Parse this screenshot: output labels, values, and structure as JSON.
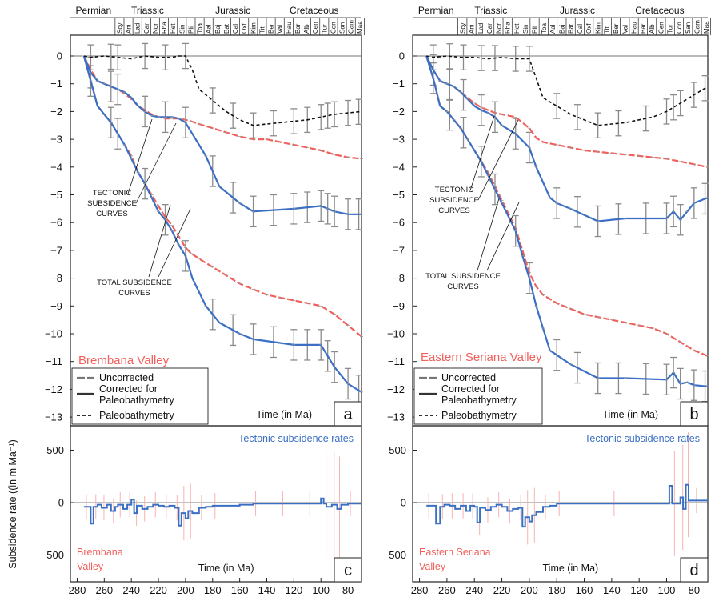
{
  "chart_data": [
    {
      "panel": "a",
      "type": "line",
      "site": "Brembana Valley",
      "xlabel": "Time (in Ma)",
      "xlim": [
        285,
        70
      ],
      "ylim": [
        -13.4,
        0.4
      ],
      "yticks": [
        0,
        -1,
        -2,
        -3,
        -4,
        -5,
        -6,
        -7,
        -8,
        -9,
        -10,
        -11,
        -12,
        -13
      ],
      "eras": [
        "Permian",
        "Triassic",
        "Jurassic",
        "Cretaceous"
      ],
      "stages": [
        "Scy",
        "Ani",
        "Lad",
        "Car",
        "Nor",
        "Rha",
        "Het",
        "Sin",
        "Pli",
        "Toa",
        "Aal",
        "Baj",
        "Bat",
        "Cal",
        "Oxf",
        "Kim",
        "Tit",
        "Ber",
        "Val",
        "Hau",
        "Bar",
        "Alb",
        "Cen",
        "Tur",
        "Con",
        "San",
        "Cam",
        "Maa"
      ],
      "annotations": [
        "TECTONIC SUBSIDENCE CURVES",
        "TOTAL SUBSIDENCE CURVES"
      ],
      "legend": [
        "Uncorrected",
        "Corrected for Paleobathymetry",
        "Paleobathymetry"
      ],
      "letter": "a",
      "series": [
        {
          "name": "Uncorrected",
          "color": "#f0605c",
          "dashed": true,
          "x": [
            275,
            270,
            265,
            260,
            255,
            250,
            245,
            240,
            235,
            230,
            225,
            220,
            215,
            210,
            205,
            200,
            196,
            190,
            180,
            170,
            160,
            150,
            140,
            130,
            120,
            110,
            100,
            90,
            80,
            70
          ],
          "y": [
            0,
            -0.5,
            -0.9,
            -1.0,
            -1.1,
            -1.2,
            -1.35,
            -1.55,
            -1.8,
            -1.95,
            -2.1,
            -2.2,
            -2.25,
            -2.25,
            -2.25,
            -2.3,
            -2.35,
            -2.45,
            -2.6,
            -2.75,
            -2.9,
            -3.0,
            -3.0,
            -3.1,
            -3.2,
            -3.3,
            -3.4,
            -3.55,
            -3.65,
            -3.7
          ]
        },
        {
          "name": "Uncorrected",
          "color": "#f0605c",
          "dashed": true,
          "x": [
            275,
            270,
            265,
            260,
            255,
            250,
            245,
            240,
            235,
            230,
            225,
            220,
            215,
            210,
            205,
            200,
            196,
            190,
            180,
            170,
            160,
            150,
            140,
            130,
            120,
            110,
            100,
            90,
            80,
            70
          ],
          "y": [
            0,
            -0.9,
            -1.8,
            -2.1,
            -2.4,
            -2.8,
            -3.2,
            -3.6,
            -4.2,
            -4.6,
            -5.0,
            -5.4,
            -5.8,
            -6.1,
            -6.5,
            -6.9,
            -7.1,
            -7.3,
            -7.6,
            -7.9,
            -8.2,
            -8.4,
            -8.6,
            -8.7,
            -8.8,
            -8.9,
            -9.0,
            -9.3,
            -9.7,
            -10.1
          ]
        },
        {
          "name": "Corrected for Paleobathymetry",
          "color": "#3a6fc4",
          "dashed": false,
          "x": [
            275,
            270,
            265,
            260,
            255,
            250,
            245,
            240,
            235,
            230,
            225,
            220,
            215,
            210,
            205,
            200,
            195,
            185,
            175,
            160,
            150,
            120,
            100,
            95,
            90,
            80,
            70
          ],
          "y": [
            0,
            -0.6,
            -0.9,
            -1.0,
            -1.1,
            -1.2,
            -1.3,
            -1.5,
            -1.8,
            -2.0,
            -2.15,
            -2.2,
            -2.2,
            -2.2,
            -2.25,
            -2.4,
            -2.8,
            -3.6,
            -4.7,
            -5.3,
            -5.6,
            -5.5,
            -5.4,
            -5.5,
            -5.6,
            -5.7,
            -5.7
          ]
        },
        {
          "name": "Corrected for Paleobathymetry",
          "color": "#3a6fc4",
          "dashed": false,
          "x": [
            275,
            270,
            265,
            260,
            255,
            250,
            245,
            240,
            235,
            230,
            225,
            220,
            215,
            210,
            205,
            200,
            195,
            185,
            175,
            160,
            150,
            120,
            100,
            90,
            80,
            70
          ],
          "y": [
            0,
            -0.9,
            -1.8,
            -2.1,
            -2.4,
            -2.8,
            -3.2,
            -3.7,
            -4.2,
            -4.6,
            -5.1,
            -5.6,
            -5.9,
            -6.3,
            -6.8,
            -7.2,
            -8.0,
            -9.0,
            -9.6,
            -10.0,
            -10.2,
            -10.4,
            -10.4,
            -11.2,
            -11.8,
            -12.1
          ]
        },
        {
          "name": "Paleobathymetry",
          "color": "#111111",
          "dashed": true,
          "x": [
            275,
            270,
            260,
            250,
            240,
            235,
            230,
            220,
            210,
            205,
            200,
            195,
            190,
            180,
            170,
            160,
            150,
            140,
            130,
            120,
            110,
            100,
            90,
            80,
            70
          ],
          "y": [
            0,
            -0.05,
            0,
            -0.05,
            -0.1,
            -0.05,
            0,
            -0.05,
            -0.05,
            0,
            0,
            -0.5,
            -1.2,
            -1.6,
            -2.0,
            -2.3,
            -2.5,
            -2.45,
            -2.4,
            -2.35,
            -2.3,
            -2.2,
            -2.1,
            -2.05,
            -2.0
          ]
        }
      ]
    },
    {
      "panel": "b",
      "type": "line",
      "site": "Eastern Seriana Valley",
      "xlabel": "Time (in Ma)",
      "xlim": [
        285,
        70
      ],
      "ylim": [
        -13.4,
        0.4
      ],
      "yticks": [
        0,
        -1,
        -2,
        -3,
        -4,
        -5,
        -6,
        -7,
        -8,
        -9,
        -10,
        -11,
        -12,
        -13
      ],
      "eras": [
        "Permian",
        "Triassic",
        "Jurassic",
        "Cretaceous"
      ],
      "stages": [
        "Scy",
        "Ani",
        "Lad",
        "Car",
        "Nor",
        "Rha",
        "Het",
        "Sin",
        "Pli",
        "Toa",
        "Aal",
        "Baj",
        "Bat",
        "Cal",
        "Oxf",
        "Kim",
        "Tit",
        "Ber",
        "Val",
        "Hau",
        "Bar",
        "Alb",
        "Cen",
        "Tur",
        "Con",
        "San",
        "Cam",
        "Maa"
      ],
      "annotations": [
        "TECTONIC SUBSIDENCE CURVES",
        "TOTAL SUBSIDENCE CURVES"
      ],
      "legend": [
        "Uncorrected",
        "Corrected for Paleobathymetry",
        "Paleobathymetry"
      ],
      "letter": "b",
      "series": [
        {
          "name": "Uncorrected",
          "color": "#f0605c",
          "dashed": true,
          "x": [
            275,
            270,
            265,
            260,
            255,
            250,
            245,
            240,
            235,
            230,
            225,
            220,
            210,
            200,
            195,
            190,
            180,
            170,
            160,
            150,
            140,
            130,
            120,
            110,
            100,
            90,
            80,
            70
          ],
          "y": [
            0,
            -0.5,
            -0.9,
            -1.0,
            -1.1,
            -1.3,
            -1.5,
            -1.7,
            -1.85,
            -1.95,
            -2.05,
            -2.1,
            -2.2,
            -2.6,
            -2.95,
            -3.1,
            -3.2,
            -3.3,
            -3.4,
            -3.45,
            -3.5,
            -3.55,
            -3.6,
            -3.65,
            -3.7,
            -3.8,
            -3.9,
            -4.0
          ]
        },
        {
          "name": "Uncorrected",
          "color": "#f0605c",
          "dashed": true,
          "x": [
            275,
            270,
            265,
            260,
            255,
            250,
            245,
            240,
            235,
            230,
            225,
            220,
            210,
            205,
            200,
            195,
            190,
            180,
            170,
            160,
            150,
            140,
            130,
            120,
            110,
            100,
            90,
            80,
            70
          ],
          "y": [
            0,
            -0.8,
            -1.8,
            -2.0,
            -2.3,
            -2.6,
            -3.0,
            -3.4,
            -3.8,
            -4.2,
            -4.7,
            -5.2,
            -6.2,
            -7.0,
            -7.8,
            -8.3,
            -8.6,
            -8.9,
            -9.1,
            -9.3,
            -9.4,
            -9.5,
            -9.6,
            -9.7,
            -9.8,
            -10.0,
            -10.3,
            -10.6,
            -10.8
          ]
        },
        {
          "name": "Corrected for Paleobathymetry",
          "color": "#3a6fc4",
          "dashed": false,
          "x": [
            275,
            270,
            265,
            260,
            255,
            250,
            245,
            240,
            235,
            230,
            225,
            220,
            210,
            200,
            195,
            185,
            180,
            170,
            150,
            130,
            100,
            95,
            90,
            85,
            80,
            70
          ],
          "y": [
            0,
            -0.5,
            -0.9,
            -1.0,
            -1.1,
            -1.3,
            -1.55,
            -1.8,
            -1.95,
            -2.05,
            -2.2,
            -2.5,
            -2.8,
            -3.3,
            -4.0,
            -5.1,
            -5.3,
            -5.5,
            -5.95,
            -5.85,
            -5.85,
            -5.6,
            -5.9,
            -5.6,
            -5.3,
            -5.1
          ]
        },
        {
          "name": "Corrected for Paleobathymetry",
          "color": "#3a6fc4",
          "dashed": false,
          "x": [
            275,
            270,
            265,
            260,
            255,
            250,
            245,
            240,
            235,
            230,
            225,
            220,
            210,
            205,
            200,
            195,
            190,
            185,
            170,
            150,
            130,
            100,
            95,
            90,
            85,
            80,
            70
          ],
          "y": [
            0,
            -0.8,
            -1.8,
            -2.0,
            -2.3,
            -2.6,
            -3.0,
            -3.4,
            -3.8,
            -4.3,
            -4.8,
            -5.3,
            -6.3,
            -7.2,
            -8.0,
            -9.0,
            -9.8,
            -10.6,
            -11.1,
            -11.6,
            -11.6,
            -11.65,
            -11.4,
            -11.8,
            -11.75,
            -11.85,
            -11.9
          ]
        },
        {
          "name": "Paleobathymetry",
          "color": "#111111",
          "dashed": true,
          "x": [
            275,
            270,
            260,
            250,
            240,
            230,
            220,
            210,
            205,
            200,
            195,
            190,
            180,
            170,
            160,
            150,
            140,
            130,
            120,
            110,
            100,
            90,
            80,
            70
          ],
          "y": [
            0,
            -0.05,
            0,
            -0.05,
            -0.05,
            -0.1,
            -0.05,
            -0.1,
            -0.1,
            -0.1,
            -0.8,
            -1.5,
            -1.8,
            -2.1,
            -2.3,
            -2.5,
            -2.45,
            -2.4,
            -2.3,
            -2.2,
            -2.0,
            -1.7,
            -1.4,
            -1.1
          ]
        }
      ]
    },
    {
      "panel": "c",
      "type": "line",
      "site": "Brembana Valley",
      "title": "Tectonic subsidence rates",
      "xlabel": "Time (in Ma)",
      "ylabel": "Subsidence rate (in m Ma⁻¹)",
      "xlim": [
        285,
        70
      ],
      "ylim": [
        -700,
        700
      ],
      "yticks": [
        500,
        0,
        -500
      ],
      "xticks": [
        280,
        260,
        240,
        220,
        200,
        180,
        160,
        140,
        120,
        100,
        80
      ],
      "letter": "c",
      "series": [
        {
          "name": "Tectonic subsidence rates",
          "color": "#3a6fc4",
          "step": true,
          "x": [
            275,
            270,
            268,
            265,
            262,
            258,
            255,
            252,
            250,
            246,
            243,
            240,
            238,
            236,
            232,
            228,
            224,
            220,
            216,
            212,
            208,
            205,
            203,
            200,
            198,
            195,
            190,
            185,
            180,
            160,
            150,
            140,
            130,
            120,
            110,
            100,
            98,
            96,
            92,
            90,
            88,
            85,
            80,
            70
          ],
          "y": [
            -40,
            -200,
            -40,
            -20,
            -50,
            -20,
            -80,
            -40,
            -20,
            -60,
            -20,
            30,
            -100,
            -30,
            -60,
            -40,
            -20,
            -30,
            -40,
            -30,
            -50,
            -220,
            -100,
            -150,
            -80,
            -100,
            -50,
            -40,
            -30,
            -20,
            -10,
            -10,
            -10,
            -10,
            -10,
            40,
            -10,
            -40,
            -20,
            -20,
            -60,
            -20,
            -10,
            -10
          ]
        }
      ]
    },
    {
      "panel": "d",
      "type": "line",
      "site": "Eastern Seriana Valley",
      "title": "Tectonic subsidence rates",
      "xlabel": "Time (in Ma)",
      "xlim": [
        285,
        70
      ],
      "ylim": [
        -700,
        700
      ],
      "yticks": [
        500,
        0,
        -500
      ],
      "xticks": [
        280,
        260,
        240,
        220,
        200,
        180,
        160,
        140,
        120,
        100,
        80
      ],
      "letter": "d",
      "series": [
        {
          "name": "Tectonic subsidence rates",
          "color": "#3a6fc4",
          "step": true,
          "x": [
            275,
            268,
            265,
            262,
            258,
            254,
            250,
            246,
            243,
            240,
            238,
            236,
            232,
            228,
            224,
            220,
            216,
            212,
            208,
            205,
            203,
            200,
            198,
            195,
            190,
            185,
            180,
            160,
            140,
            120,
            100,
            98,
            96,
            92,
            90,
            88,
            86,
            84,
            80,
            70
          ],
          "y": [
            -30,
            -200,
            -40,
            -20,
            -30,
            -60,
            -30,
            -80,
            -30,
            -40,
            -190,
            -50,
            -70,
            -40,
            -20,
            -40,
            -80,
            -60,
            -50,
            -230,
            -140,
            -180,
            -120,
            -90,
            -40,
            -30,
            -10,
            -10,
            -10,
            -10,
            -10,
            160,
            -10,
            -10,
            50,
            -60,
            170,
            20,
            20,
            20
          ]
        }
      ]
    }
  ],
  "sites": {
    "a": "Brembana Valley",
    "b": "Eastern Seriana Valley",
    "c_line1": "Brembana",
    "c_line2": "Valley",
    "d_line1": "Eastern Seriana",
    "d_line2": "Valley"
  },
  "labels": {
    "time": "Time (in Ma)",
    "rate_title": "Tectonic subsidence rates",
    "ylabel_rate": "Subsidence rate ((in m Ma⁻¹)",
    "tectonic_1": "TECTONIC",
    "tectonic_2": "SUBSIDENCE",
    "tectonic_3": "CURVES",
    "total_1": "TOTAL SUBSIDENCE",
    "total_2": "CURVES",
    "leg_uncorrected": "Uncorrected",
    "leg_corrected_1": "Corrected for",
    "leg_corrected_2": "Paleobathymetry",
    "leg_paleo": "Paleobathymetry",
    "permian": "Permian",
    "triassic": "Triassic",
    "jurassic": "Jurassic",
    "cretaceous": "Cretaceous"
  },
  "colors": {
    "red": "#f0605c",
    "blue": "#3a6fc4",
    "grey": "#8a8a8a",
    "pink": "#f7b3b0"
  }
}
